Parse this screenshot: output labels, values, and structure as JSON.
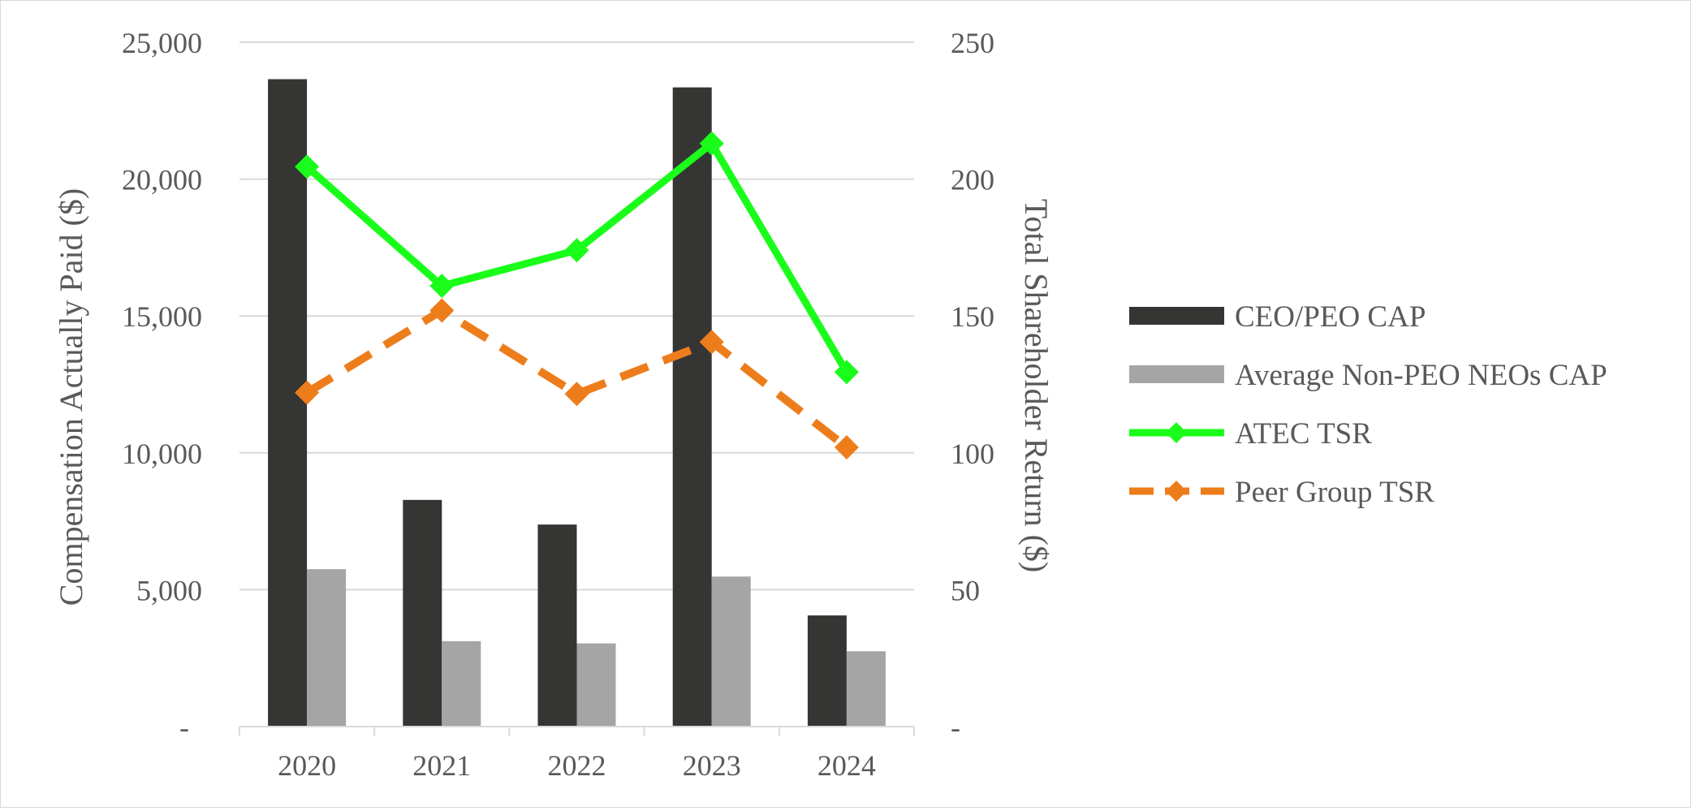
{
  "chart_data": {
    "type": "bar+line",
    "categories": [
      "2020",
      "2021",
      "2022",
      "2023",
      "2024"
    ],
    "bar_series": [
      {
        "name": "CEO/PEO CAP",
        "color": "#353634",
        "values": [
          23650,
          8280,
          7380,
          23350,
          4060
        ]
      },
      {
        "name": "Average Non-PEO NEOs CAP",
        "color": "#a5a5a5",
        "values": [
          5750,
          3120,
          3040,
          5480,
          2750
        ]
      }
    ],
    "line_series": [
      {
        "name": "ATEC TSR",
        "color": "#1afd1a",
        "style": "solid",
        "marker": "diamond",
        "values": [
          204.5,
          161,
          174,
          213,
          129.5
        ]
      },
      {
        "name": "Peer Group TSR",
        "color": "#ed7d1b",
        "style": "dashed",
        "marker": "diamond",
        "values": [
          122,
          152,
          121.5,
          140.5,
          102
        ]
      }
    ],
    "left_axis": {
      "title": "Compensation Actually Paid ($)",
      "ylim": [
        0,
        25000
      ],
      "ticks": [
        0,
        5000,
        10000,
        15000,
        20000,
        25000
      ],
      "tick_labels": [
        "-",
        "5,000",
        "10,000",
        "15,000",
        "20,000",
        "25,000"
      ]
    },
    "right_axis": {
      "title": "Total Shareholder Return ($)",
      "ylim": [
        0,
        250
      ],
      "ticks": [
        0,
        50,
        100,
        150,
        200,
        250
      ],
      "tick_labels": [
        "-",
        "50",
        "100",
        "150",
        "200",
        "250"
      ]
    },
    "grid": true,
    "legend_position": "right"
  }
}
